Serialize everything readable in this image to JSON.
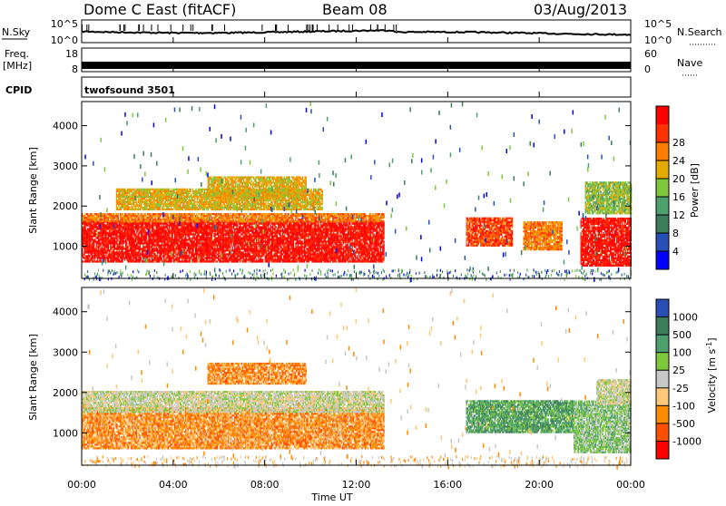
{
  "header": {
    "station": "Dome C East (fitACF)",
    "beam": "Beam 08",
    "date": "03/Aug/2013"
  },
  "noise_panel": {
    "left_label": "N.Sky",
    "right_label": "N.Search",
    "left_ticks": [
      "10^5",
      "10^0"
    ],
    "right_ticks": [
      "10^5",
      "10^0"
    ]
  },
  "freq_panel": {
    "left_label_line1": "Freq.",
    "left_label_line2": "[MHz]",
    "right_label": "Nave",
    "left_ticks": [
      "18",
      "8"
    ],
    "right_ticks": [
      "60",
      "0"
    ]
  },
  "cpid": {
    "label": "CPID",
    "value": "twofsound 3501"
  },
  "colors": {
    "power": [
      "#0000ff",
      "#2850b4",
      "#3c7d5a",
      "#4ba06e",
      "#7dc83c",
      "#e6aa00",
      "#ff7d00",
      "#ff3200",
      "#ff0000"
    ],
    "velocity": [
      "#2850b4",
      "#3c7d5a",
      "#4ba06e",
      "#7dc83c",
      "#c8c8c8",
      "#ffc878",
      "#ff8c00",
      "#ff5000",
      "#ff0000"
    ]
  },
  "chart_data": [
    {
      "type": "heatmap",
      "name": "power",
      "ylabel": "Slant Range [km]",
      "ylim": [
        200,
        4600
      ],
      "yticks": [
        "1000",
        "2000",
        "3000",
        "4000"
      ],
      "xlim": [
        "00:00",
        "24:00"
      ],
      "colorbar_label": "Power [dB]",
      "colorbar_ticks": [
        "4",
        "8",
        "12",
        "16",
        "20",
        "24",
        "28"
      ],
      "regions": [
        {
          "t0": 0.0,
          "t1": 13.2,
          "r0": 600,
          "r1": 1600,
          "level": 8
        },
        {
          "t0": 0.0,
          "t1": 13.2,
          "r0": 1600,
          "r1": 1800,
          "level": 6
        },
        {
          "t0": 1.5,
          "t1": 10.5,
          "r0": 1900,
          "r1": 2400,
          "level": 5
        },
        {
          "t0": 5.5,
          "t1": 9.8,
          "r0": 2200,
          "r1": 2700,
          "level": 5
        },
        {
          "t0": 16.8,
          "t1": 18.8,
          "r0": 1000,
          "r1": 1700,
          "level": 7
        },
        {
          "t0": 19.3,
          "t1": 21.0,
          "r0": 900,
          "r1": 1600,
          "level": 6
        },
        {
          "t0": 21.8,
          "t1": 24.0,
          "r0": 500,
          "r1": 1700,
          "level": 8
        },
        {
          "t0": 22.0,
          "t1": 24.0,
          "r0": 1800,
          "r1": 2600,
          "level": 4
        }
      ]
    },
    {
      "type": "heatmap",
      "name": "velocity",
      "ylabel": "Slant Range [km]",
      "ylim": [
        200,
        4600
      ],
      "yticks": [
        "1000",
        "2000",
        "3000",
        "4000"
      ],
      "xlim": [
        "00:00",
        "24:00"
      ],
      "xticks": [
        "00:00",
        "04:00",
        "08:00",
        "12:00",
        "16:00",
        "20:00",
        "00:00"
      ],
      "xlabel": "Time UT",
      "colorbar_label": "Velocity [m s^-1]",
      "colorbar_ticks": [
        "1000",
        "500",
        "100",
        "25",
        "-25",
        "-100",
        "-500",
        "-1000"
      ],
      "regions": [
        {
          "t0": 0.0,
          "t1": 13.2,
          "r0": 600,
          "r1": 1600,
          "level": 6
        },
        {
          "t0": 0.0,
          "t1": 13.2,
          "r0": 1500,
          "r1": 2000,
          "level": 4
        },
        {
          "t0": 5.5,
          "t1": 9.8,
          "r0": 2200,
          "r1": 2700,
          "level": 6
        },
        {
          "t0": 16.8,
          "t1": 21.5,
          "r0": 1000,
          "r1": 1800,
          "level": 2
        },
        {
          "t0": 21.5,
          "t1": 24.0,
          "r0": 500,
          "r1": 1800,
          "level": 3
        },
        {
          "t0": 22.5,
          "t1": 24.0,
          "r0": 1700,
          "r1": 2300,
          "level": 4
        }
      ]
    }
  ]
}
